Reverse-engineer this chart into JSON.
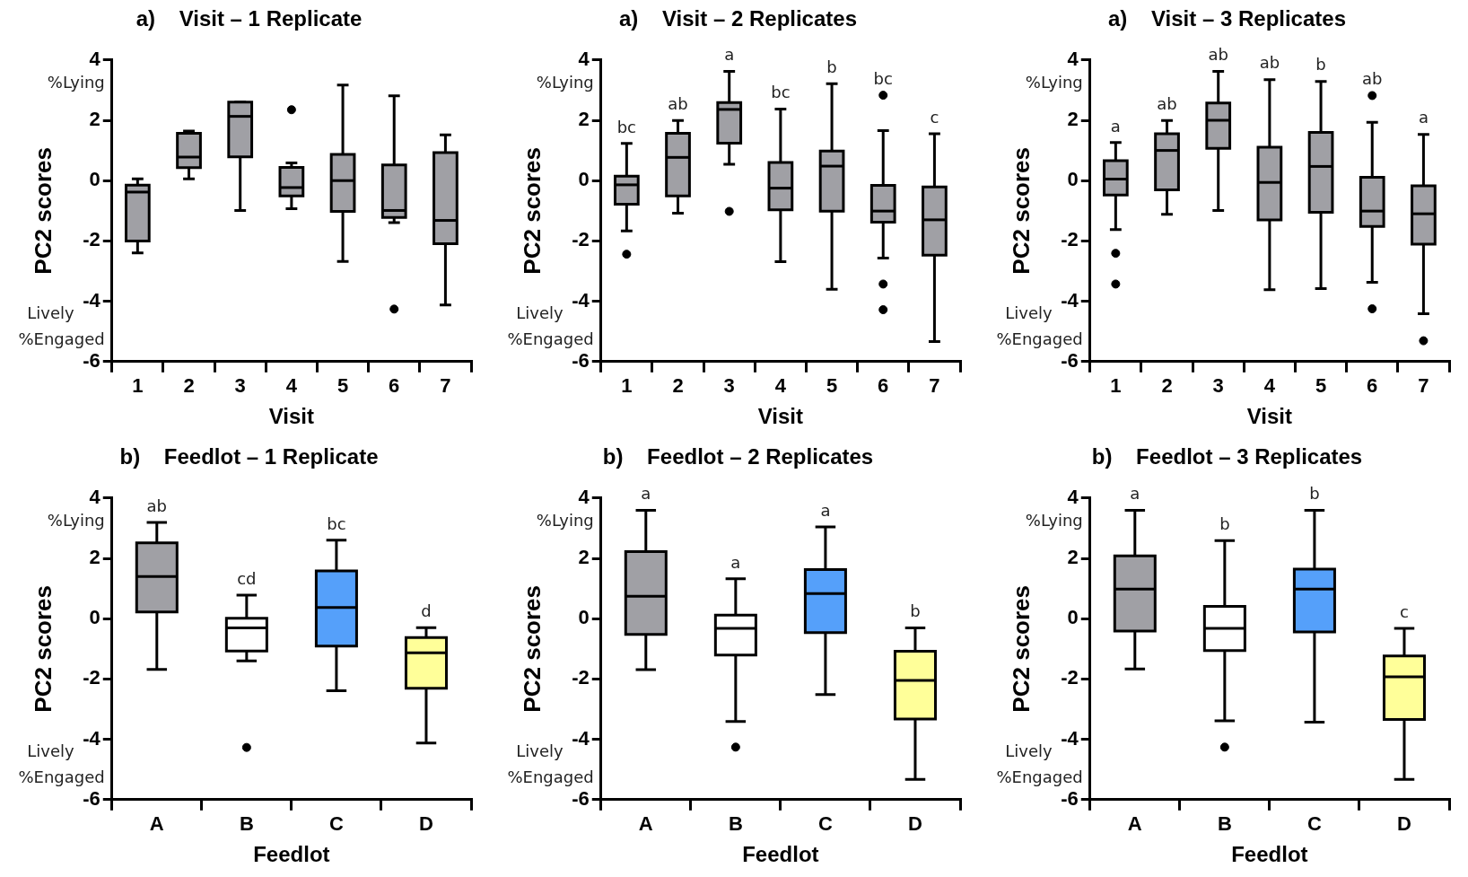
{
  "chart_data": [
    {
      "type": "box",
      "title": "a)    Visit – 1 Replicate",
      "xlabel": "Visit",
      "ylabel": "PC2 scores",
      "categories": [
        "1",
        "2",
        "3",
        "4",
        "5",
        "6",
        "7"
      ],
      "ylim": [
        -6,
        4
      ],
      "yticks": [
        -6,
        -4,
        -2,
        0,
        2,
        4
      ],
      "colors": [
        "#a0a0a5",
        "#a0a0a5",
        "#a0a0a5",
        "#a0a0a5",
        "#a0a0a5",
        "#a0a0a5",
        "#a0a0a5"
      ],
      "boxes": [
        {
          "low": -2.4,
          "q1": -2.0,
          "median": -0.38,
          "q3": -0.15,
          "high": 0.06
        },
        {
          "low": 0.06,
          "q1": 0.43,
          "median": 0.78,
          "q3": 1.57,
          "high": 1.64
        },
        {
          "low": -0.99,
          "q1": 0.79,
          "median": 2.13,
          "q3": 2.6,
          "high": 2.6
        },
        {
          "low": -0.93,
          "q1": -0.51,
          "median": -0.23,
          "q3": 0.44,
          "high": 0.59,
          "outliers": [
            2.35
          ]
        },
        {
          "low": -2.68,
          "q1": -1.02,
          "median": 0.0,
          "q3": 0.87,
          "high": 3.17
        },
        {
          "low": -1.39,
          "q1": -1.22,
          "median": -0.99,
          "q3": 0.52,
          "high": 2.81,
          "outliers": [
            -4.26
          ]
        },
        {
          "low": -4.12,
          "q1": -2.09,
          "median": -1.32,
          "q3": 0.93,
          "high": 1.52
        }
      ],
      "annotations": [
        "%Lying",
        "Lively",
        "%Engaged"
      ]
    },
    {
      "type": "box",
      "title": "a)    Visit – 2 Replicates",
      "xlabel": "Visit",
      "ylabel": "PC2 scores",
      "categories": [
        "1",
        "2",
        "3",
        "4",
        "5",
        "6",
        "7"
      ],
      "ylim": [
        -6,
        4
      ],
      "yticks": [
        -6,
        -4,
        -2,
        0,
        2,
        4
      ],
      "colors": [
        "#a0a0a5",
        "#a0a0a5",
        "#a0a0a5",
        "#a0a0a5",
        "#a0a0a5",
        "#a0a0a5",
        "#a0a0a5"
      ],
      "boxes": [
        {
          "low": -1.67,
          "q1": -0.78,
          "median": -0.14,
          "q3": 0.15,
          "high": 1.23,
          "outliers": [
            -2.44
          ]
        },
        {
          "low": -1.08,
          "q1": -0.51,
          "median": 0.77,
          "q3": 1.57,
          "high": 1.99
        },
        {
          "low": 0.54,
          "q1": 1.24,
          "median": 2.36,
          "q3": 2.59,
          "high": 3.62,
          "outliers": [
            -1.02
          ]
        },
        {
          "low": -2.69,
          "q1": -0.97,
          "median": -0.25,
          "q3": 0.6,
          "high": 2.37
        },
        {
          "low": -3.6,
          "q1": -1.01,
          "median": 0.48,
          "q3": 0.98,
          "high": 3.21
        },
        {
          "low": -2.57,
          "q1": -1.38,
          "median": -1.01,
          "q3": -0.16,
          "high": 1.66,
          "outliers": [
            2.83,
            -3.43,
            -4.28
          ]
        },
        {
          "low": -5.34,
          "q1": -2.47,
          "median": -1.3,
          "q3": -0.21,
          "high": 1.55
        }
      ],
      "annotations": [
        "%Lying",
        "Lively",
        "%Engaged",
        "bc",
        "ab",
        "a",
        "bc",
        "b",
        "bc",
        "c"
      ]
    },
    {
      "type": "box",
      "title": "a)    Visit – 3 Replicates",
      "xlabel": "Visit",
      "ylabel": "PC2 scores",
      "categories": [
        "1",
        "2",
        "3",
        "4",
        "5",
        "6",
        "7"
      ],
      "ylim": [
        -6,
        4
      ],
      "yticks": [
        -6,
        -4,
        -2,
        0,
        2,
        4
      ],
      "colors": [
        "#a0a0a5",
        "#a0a0a5",
        "#a0a0a5",
        "#a0a0a5",
        "#a0a0a5",
        "#a0a0a5",
        "#a0a0a5"
      ],
      "boxes": [
        {
          "low": -1.62,
          "q1": -0.48,
          "median": 0.05,
          "q3": 0.66,
          "high": 1.26,
          "outliers": [
            -2.41,
            -3.43
          ]
        },
        {
          "low": -1.12,
          "q1": -0.31,
          "median": 1.0,
          "q3": 1.55,
          "high": 1.99
        },
        {
          "low": -0.99,
          "q1": 1.07,
          "median": 2.0,
          "q3": 2.57,
          "high": 3.62
        },
        {
          "low": -3.62,
          "q1": -1.3,
          "median": -0.06,
          "q3": 1.11,
          "high": 3.35
        },
        {
          "low": -3.58,
          "q1": -1.05,
          "median": 0.47,
          "q3": 1.6,
          "high": 3.29
        },
        {
          "low": -3.37,
          "q1": -1.52,
          "median": -1.01,
          "q3": 0.11,
          "high": 1.93,
          "outliers": [
            2.82,
            -4.25
          ]
        },
        {
          "low": -4.41,
          "q1": -2.11,
          "median": -1.1,
          "q3": -0.17,
          "high": 1.53,
          "outliers": [
            -5.31
          ]
        }
      ],
      "annotations": [
        "%Lying",
        "Lively",
        "%Engaged",
        "a",
        "ab",
        "ab",
        "ab",
        "b",
        "ab",
        "a"
      ]
    },
    {
      "type": "box",
      "title": "b)    Feedlot – 1 Replicate",
      "xlabel": "Feedlot",
      "ylabel": "PC2 scores",
      "categories": [
        "A",
        "B",
        "C",
        "D"
      ],
      "ylim": [
        -6,
        4
      ],
      "yticks": [
        -6,
        -4,
        -2,
        0,
        2,
        4
      ],
      "colors": [
        "#a0a0a5",
        "#ffffff",
        "#55a0fa",
        "#ffff99"
      ],
      "boxes": [
        {
          "low": -1.68,
          "q1": 0.22,
          "median": 1.4,
          "q3": 2.51,
          "high": 3.19
        },
        {
          "low": -1.4,
          "q1": -1.07,
          "median": -0.31,
          "q3": 0.01,
          "high": 0.78,
          "outliers": [
            -4.27
          ]
        },
        {
          "low": -2.39,
          "q1": -0.91,
          "median": 0.37,
          "q3": 1.58,
          "high": 2.6
        },
        {
          "low": -4.12,
          "q1": -2.31,
          "median": -1.13,
          "q3": -0.63,
          "high": -0.3
        }
      ],
      "annotations": [
        "%Lying",
        "Lively",
        "%Engaged",
        "ab",
        "cd",
        "bc",
        "d"
      ]
    },
    {
      "type": "box",
      "title": "b)    Feedlot – 2 Replicates",
      "xlabel": "Feedlot",
      "ylabel": "PC2 scores",
      "categories": [
        "A",
        "B",
        "C",
        "D"
      ],
      "ylim": [
        -6,
        4
      ],
      "yticks": [
        -6,
        -4,
        -2,
        0,
        2,
        4
      ],
      "colors": [
        "#a0a0a5",
        "#ffffff",
        "#55a0fa",
        "#ffff99"
      ],
      "boxes": [
        {
          "low": -1.69,
          "q1": -0.52,
          "median": 0.74,
          "q3": 2.22,
          "high": 3.59
        },
        {
          "low": -3.41,
          "q1": -1.21,
          "median": -0.32,
          "q3": 0.12,
          "high": 1.32,
          "outliers": [
            -4.26
          ]
        },
        {
          "low": -2.52,
          "q1": -0.46,
          "median": 0.83,
          "q3": 1.63,
          "high": 3.04
        },
        {
          "low": -5.33,
          "q1": -3.33,
          "median": -2.05,
          "q3": -1.08,
          "high": -0.31
        }
      ],
      "annotations": [
        "%Lying",
        "Lively",
        "%Engaged",
        "a",
        "a",
        "a",
        "b"
      ]
    },
    {
      "type": "box",
      "title": "b)    Feedlot – 3 Replicates",
      "xlabel": "Feedlot",
      "ylabel": "PC2 scores",
      "categories": [
        "A",
        "B",
        "C",
        "D"
      ],
      "ylim": [
        -6,
        4
      ],
      "yticks": [
        -6,
        -4,
        -2,
        0,
        2,
        4
      ],
      "colors": [
        "#a0a0a5",
        "#ffffff",
        "#55a0fa",
        "#ffff99"
      ],
      "boxes": [
        {
          "low": -1.67,
          "q1": -0.41,
          "median": 0.98,
          "q3": 2.08,
          "high": 3.59
        },
        {
          "low": -3.39,
          "q1": -1.06,
          "median": -0.32,
          "q3": 0.41,
          "high": 2.59,
          "outliers": [
            -4.26
          ]
        },
        {
          "low": -3.43,
          "q1": -0.44,
          "median": 0.98,
          "q3": 1.64,
          "high": 3.59
        },
        {
          "low": -5.33,
          "q1": -3.34,
          "median": -1.93,
          "q3": -1.24,
          "high": -0.32
        }
      ],
      "annotations": [
        "%Lying",
        "Lively",
        "%Engaged",
        "a",
        "b",
        "b",
        "c"
      ]
    }
  ]
}
